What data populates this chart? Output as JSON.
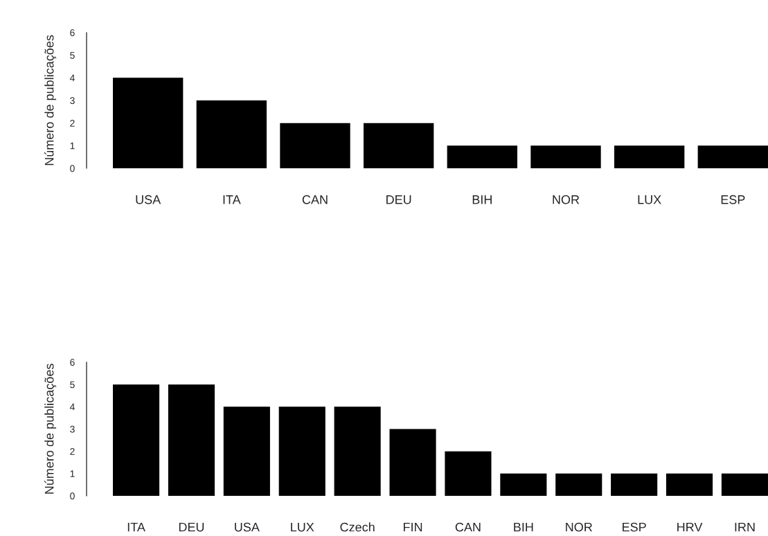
{
  "chart_data": [
    {
      "type": "bar",
      "ylabel": "Número de publicações",
      "categories": [
        "USA",
        "ITA",
        "CAN",
        "DEU",
        "BIH",
        "NOR",
        "LUX",
        "ESP"
      ],
      "values": [
        4,
        3,
        2,
        2,
        1,
        1,
        1,
        1
      ],
      "color": "#000000",
      "ylim": [
        0,
        6
      ],
      "yticks": [
        0,
        1,
        2,
        3,
        4,
        5,
        6
      ],
      "grid": false
    },
    {
      "type": "bar",
      "ylabel": "Número de publicações",
      "categories": [
        "ITA",
        "DEU",
        "USA",
        "LUX",
        "Czech",
        "FIN",
        "CAN",
        "BIH",
        "NOR",
        "ESP",
        "HRV",
        "IRN"
      ],
      "values": [
        5,
        5,
        4,
        4,
        4,
        3,
        2,
        1,
        1,
        1,
        1,
        1
      ],
      "color": "#000000",
      "ylim": [
        0,
        6
      ],
      "yticks": [
        0,
        1,
        2,
        3,
        4,
        5,
        6
      ],
      "grid": false
    }
  ]
}
